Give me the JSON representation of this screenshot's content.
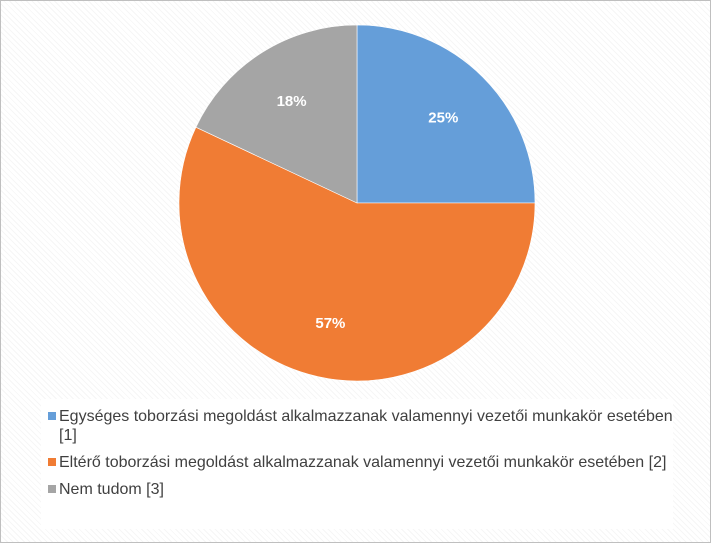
{
  "chart_data": {
    "type": "pie",
    "start_angle_deg": 0,
    "direction": "clockwise",
    "slices": [
      {
        "label": "Egységes toborzási megoldást alkalmazzanak valamennyi vezetői munkakör esetében [1]",
        "value": 25,
        "display": "25%",
        "color": "#659ed9"
      },
      {
        "label": "Eltérő toborzási megoldást alkalmazzanak valamennyi vezetői munkakör esetében [2]",
        "value": 57,
        "display": "57%",
        "color": "#f07c34"
      },
      {
        "label": "Nem tudom [3]",
        "value": 18,
        "display": "18%",
        "color": "#a5a5a5"
      }
    ],
    "legend_position": "bottom"
  }
}
